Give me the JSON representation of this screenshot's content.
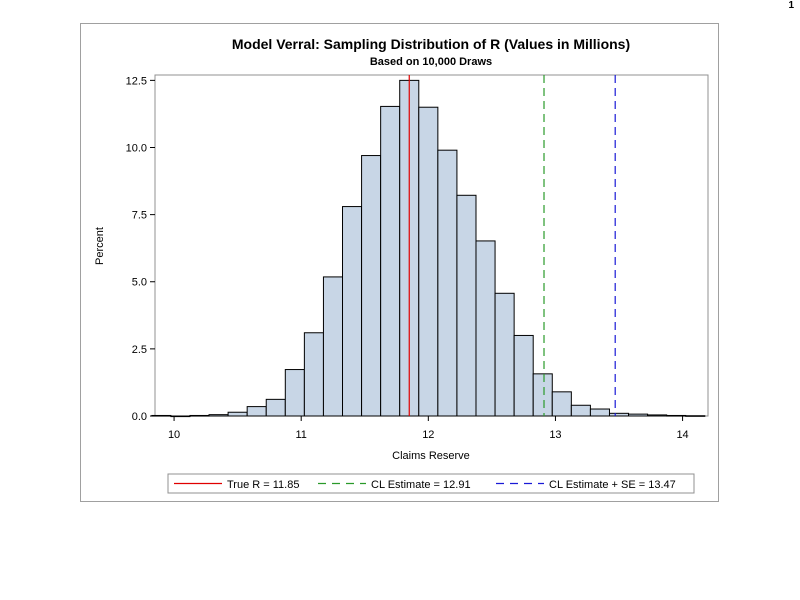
{
  "page_number": "1",
  "chart_data": {
    "type": "histogram",
    "title": "Model Verral: Sampling Distribution of R (Values in Millions)",
    "subtitle": "Based on 10,000 Draws",
    "xlabel": "Claims Reserve",
    "ylabel": "Percent",
    "xlim": [
      9.85,
      14.2
    ],
    "ylim": [
      0,
      12.7
    ],
    "x_ticks": [
      10,
      11,
      12,
      13,
      14
    ],
    "y_ticks": [
      0,
      2.5,
      5,
      7.5,
      10,
      12.5
    ],
    "y_tick_labels": [
      "0.0",
      "2.5",
      "5.0",
      "7.5",
      "10.0",
      "12.5"
    ],
    "bin_width": 0.15,
    "bins": [
      {
        "center": 9.9,
        "percent": 0.02
      },
      {
        "center": 10.05,
        "percent": 0.0
      },
      {
        "center": 10.2,
        "percent": 0.02
      },
      {
        "center": 10.35,
        "percent": 0.05
      },
      {
        "center": 10.5,
        "percent": 0.14
      },
      {
        "center": 10.65,
        "percent": 0.35
      },
      {
        "center": 10.8,
        "percent": 0.62
      },
      {
        "center": 10.95,
        "percent": 1.73
      },
      {
        "center": 11.1,
        "percent": 3.1
      },
      {
        "center": 11.25,
        "percent": 5.18
      },
      {
        "center": 11.4,
        "percent": 7.8
      },
      {
        "center": 11.55,
        "percent": 9.7
      },
      {
        "center": 11.7,
        "percent": 11.53
      },
      {
        "center": 11.85,
        "percent": 12.5
      },
      {
        "center": 12.0,
        "percent": 11.5
      },
      {
        "center": 12.15,
        "percent": 9.9
      },
      {
        "center": 12.3,
        "percent": 8.22
      },
      {
        "center": 12.45,
        "percent": 6.52
      },
      {
        "center": 12.6,
        "percent": 4.57
      },
      {
        "center": 12.75,
        "percent": 3.0
      },
      {
        "center": 12.9,
        "percent": 1.57
      },
      {
        "center": 13.05,
        "percent": 0.9
      },
      {
        "center": 13.2,
        "percent": 0.4
      },
      {
        "center": 13.35,
        "percent": 0.26
      },
      {
        "center": 13.5,
        "percent": 0.1
      },
      {
        "center": 13.65,
        "percent": 0.07
      },
      {
        "center": 13.8,
        "percent": 0.04
      },
      {
        "center": 13.95,
        "percent": 0.02
      },
      {
        "center": 14.1,
        "percent": 0.01
      }
    ],
    "reference_lines": [
      {
        "name": "True R = 11.85",
        "x": 11.85,
        "color": "#e00000",
        "dash": "solid"
      },
      {
        "name": "CL Estimate = 12.91",
        "x": 12.91,
        "color": "#2a9a2a",
        "dash": "dashed"
      },
      {
        "name": "CL Estimate + SE = 13.47",
        "x": 13.47,
        "color": "#1a1ad6",
        "dash": "dashed"
      }
    ],
    "bar_fill": "#c8d6e6",
    "bar_stroke": "#000000",
    "legend_position": "bottom"
  }
}
